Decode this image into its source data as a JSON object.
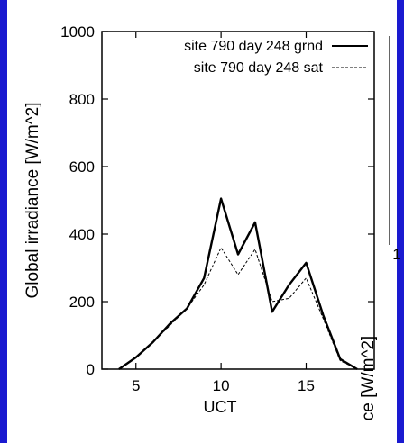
{
  "chart_data": {
    "type": "line",
    "xlabel": "UCT",
    "ylabel": "Global irradiance  [W/m^2]",
    "xlim": [
      3,
      19
    ],
    "ylim": [
      0,
      1000
    ],
    "x_ticks": [
      5,
      10,
      15
    ],
    "y_ticks": [
      0,
      200,
      400,
      600,
      800,
      1000
    ],
    "grid": false,
    "legend_position": "top-right",
    "series": [
      {
        "name": "site 790 day 248 grnd",
        "style": "solid",
        "color": "#000000",
        "x": [
          4,
          5,
          6,
          7,
          8,
          9,
          10,
          11,
          12,
          13,
          14,
          15,
          16,
          17,
          18
        ],
        "y": [
          0,
          35,
          80,
          135,
          180,
          270,
          505,
          340,
          435,
          170,
          250,
          315,
          160,
          30,
          0
        ]
      },
      {
        "name": "site 790 day 248 sat",
        "style": "dashed",
        "color": "#000000",
        "x": [
          4,
          5,
          6,
          7,
          8,
          9,
          10,
          11,
          12,
          13,
          14,
          15,
          16,
          17,
          18
        ],
        "y": [
          0,
          35,
          80,
          130,
          180,
          250,
          360,
          280,
          355,
          200,
          210,
          270,
          150,
          25,
          0
        ]
      }
    ],
    "partial_second_chart": {
      "ylabel_fragment": "ce  [W/m^2]",
      "tick_fragment": "1"
    }
  }
}
